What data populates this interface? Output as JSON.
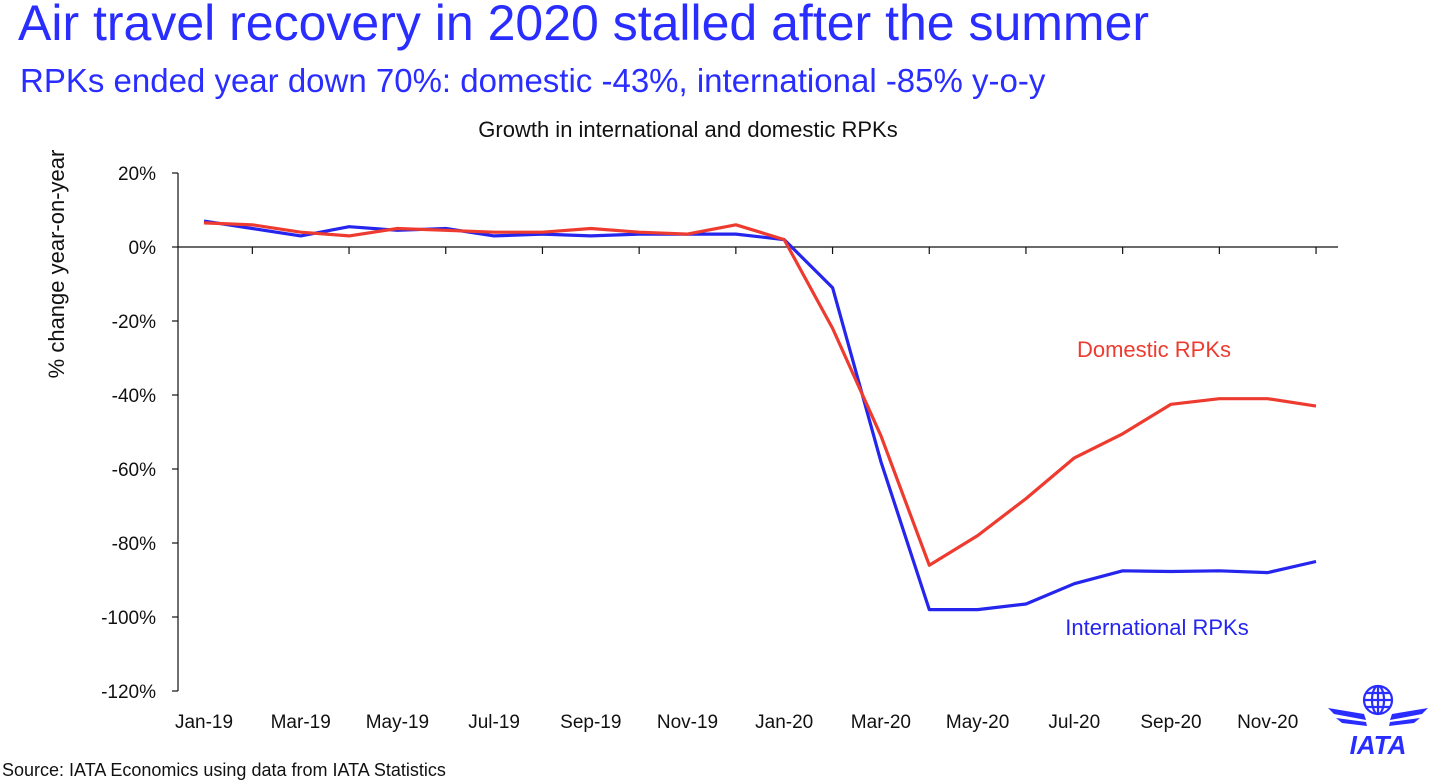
{
  "headline": "Air travel recovery in 2020 stalled after the summer",
  "subheadline": "RPKs ended year down 70%: domestic -43%, international -85% y-o-y",
  "source": "Source: IATA Economics using data from IATA Statistics",
  "logo_text": "IATA",
  "colors": {
    "headline": "#2a2dff",
    "domestic": "#ee3b30",
    "international": "#2525ee"
  },
  "chart_data": {
    "type": "line",
    "title": "Growth in international and domestic RPKs",
    "xlabel": "",
    "ylabel": "% change year-on-year",
    "ylim": [
      -120,
      20
    ],
    "yticks": [
      20,
      0,
      -20,
      -40,
      -60,
      -80,
      -100,
      -120
    ],
    "ytick_labels": [
      "20%",
      "0%",
      "-20%",
      "-40%",
      "-60%",
      "-80%",
      "-100%",
      "-120%"
    ],
    "grid": false,
    "x": [
      "Jan-19",
      "Feb-19",
      "Mar-19",
      "Apr-19",
      "May-19",
      "Jun-19",
      "Jul-19",
      "Aug-19",
      "Sep-19",
      "Oct-19",
      "Nov-19",
      "Dec-19",
      "Jan-20",
      "Feb-20",
      "Mar-20",
      "Apr-20",
      "May-20",
      "Jun-20",
      "Jul-20",
      "Aug-20",
      "Sep-20",
      "Oct-20",
      "Nov-20",
      "Dec-20"
    ],
    "xtick_labels": [
      "Jan-19",
      "Mar-19",
      "May-19",
      "Jul-19",
      "Sep-19",
      "Nov-19",
      "Jan-20",
      "Mar-20",
      "May-20",
      "Jul-20",
      "Sep-20",
      "Nov-20"
    ],
    "series": [
      {
        "name": "Domestic RPKs",
        "color": "#ee3b30",
        "values": [
          6.5,
          6.0,
          4.0,
          3.0,
          5.0,
          4.5,
          4.0,
          4.0,
          5.0,
          4.0,
          3.5,
          6.0,
          2.0,
          -22.0,
          -51.0,
          -86.0,
          -78.0,
          -68.0,
          -57.0,
          -50.5,
          -42.5,
          -41.0,
          -41.0,
          -43.0
        ]
      },
      {
        "name": "International RPKs",
        "color": "#2525ee",
        "values": [
          7.0,
          5.0,
          3.0,
          5.5,
          4.5,
          5.0,
          3.0,
          3.5,
          3.0,
          3.5,
          3.5,
          3.5,
          2.0,
          -11.0,
          -58.0,
          -98.0,
          -98.0,
          -96.5,
          -91.0,
          -87.5,
          -87.7,
          -87.5,
          -88.0,
          -85.0
        ]
      }
    ],
    "annotations": [
      {
        "text": "Domestic RPKs",
        "series": "Domestic RPKs"
      },
      {
        "text": "International RPKs",
        "series": "International RPKs"
      }
    ]
  }
}
